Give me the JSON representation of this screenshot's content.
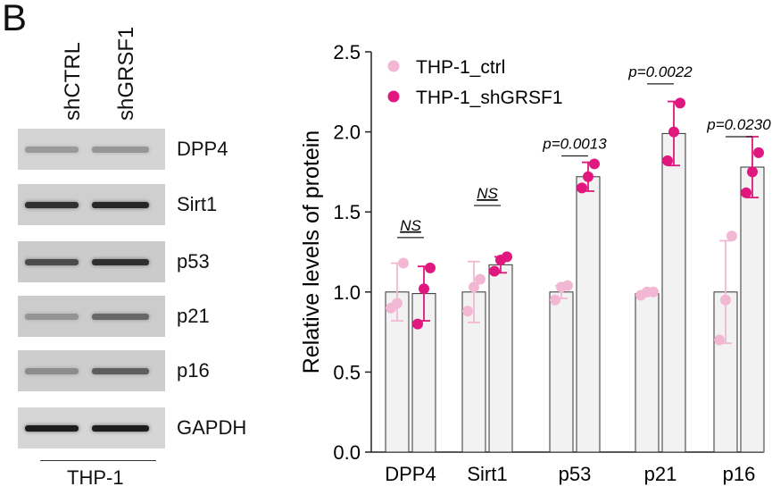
{
  "panel_label": "B",
  "blot": {
    "lanes": [
      "shCTRL",
      "shGRSF1"
    ],
    "cell_line": "THP-1",
    "rows": [
      {
        "protein": "DPP4",
        "intensity": [
          0.3,
          0.32
        ],
        "bg": "#d4d4d4"
      },
      {
        "protein": "Sirt1",
        "intensity": [
          0.85,
          0.9
        ],
        "bg": "#cfcfcf"
      },
      {
        "protein": "p53",
        "intensity": [
          0.7,
          0.85
        ],
        "bg": "#cbcbcb"
      },
      {
        "protein": "p21",
        "intensity": [
          0.3,
          0.55
        ],
        "bg": "#cccccc"
      },
      {
        "protein": "p16",
        "intensity": [
          0.35,
          0.6
        ],
        "bg": "#cdcdcd"
      },
      {
        "protein": "GAPDH",
        "intensity": [
          0.95,
          0.95
        ],
        "bg": "#d6d6d6"
      }
    ]
  },
  "chart_data": {
    "type": "bar",
    "categories": [
      "DPP4",
      "Sirt1",
      "p53",
      "p21",
      "p16"
    ],
    "ylabel": "Relative levels of protein",
    "ylim": [
      0,
      2.5
    ],
    "yticks": [
      "0.0",
      "0.5",
      "1.0",
      "1.5",
      "2.0",
      "2.5"
    ],
    "legend_position": "top-left",
    "series": [
      {
        "name": "THP-1_ctrl",
        "color": "#f2b8d3",
        "values": [
          1.0,
          1.0,
          1.0,
          0.99,
          1.0
        ],
        "errors": [
          0.18,
          0.19,
          0.04,
          0.01,
          0.32
        ],
        "points": [
          [
            0.9,
            0.93,
            1.18
          ],
          [
            0.88,
            1.03,
            1.08
          ],
          [
            0.95,
            1.03,
            1.04
          ],
          [
            0.98,
            1.0,
            1.0
          ],
          [
            0.7,
            0.95,
            1.35
          ]
        ]
      },
      {
        "name": "THP-1_shGRSF1",
        "color": "#e0177f",
        "values": [
          0.99,
          1.17,
          1.72,
          1.99,
          1.78
        ],
        "errors": [
          0.17,
          0.05,
          0.09,
          0.2,
          0.19
        ],
        "points": [
          [
            0.8,
            1.02,
            1.15
          ],
          [
            1.13,
            1.2,
            1.22
          ],
          [
            1.65,
            1.72,
            1.8
          ],
          [
            1.82,
            2.0,
            2.18
          ],
          [
            1.62,
            1.75,
            1.87
          ]
        ]
      }
    ],
    "annotations": [
      "NS",
      "NS",
      "p=0.0013",
      "p=0.0022",
      "p=0.0230"
    ],
    "annotation_levels": [
      1.34,
      1.54,
      1.85,
      2.3,
      1.97
    ]
  }
}
